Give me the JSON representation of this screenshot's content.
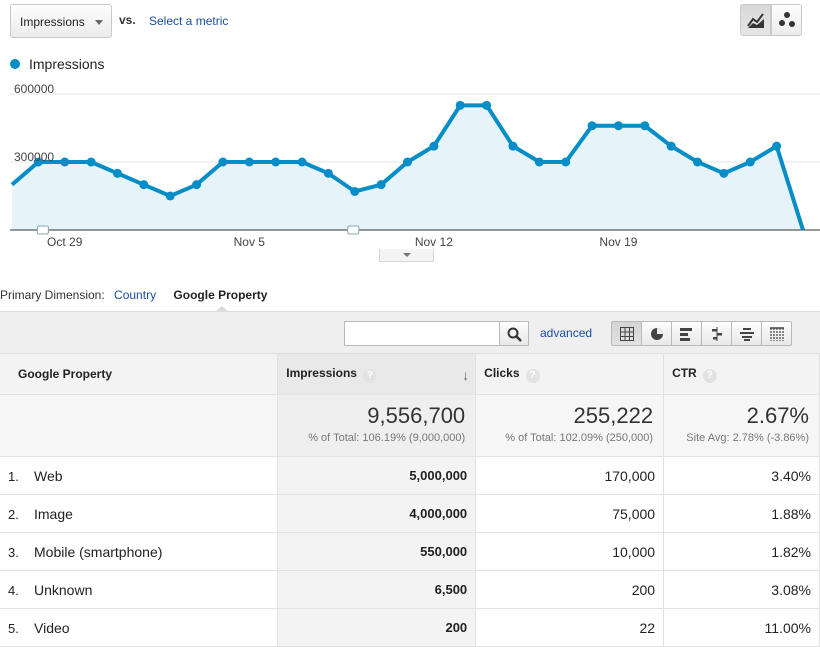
{
  "controls": {
    "metric": "Impressions",
    "vs": "vs.",
    "select_metric": "Select a metric"
  },
  "legend": {
    "series_name": "Impressions",
    "color": "#058dc7"
  },
  "chart_data": {
    "type": "area",
    "series": [
      {
        "name": "Impressions",
        "values": [
          200000,
          300000,
          300000,
          300000,
          250000,
          200000,
          150000,
          200000,
          300000,
          300000,
          300000,
          300000,
          250000,
          170000,
          200000,
          300000,
          370000,
          550000,
          550000,
          370000,
          300000,
          300000,
          460000,
          460000,
          460000,
          370000,
          300000,
          250000,
          300000,
          370000,
          0
        ]
      }
    ],
    "yticks": [
      "600000",
      "300000"
    ],
    "ylim": [
      0,
      600000
    ],
    "xlabels": [
      "Oct 29",
      "Nov 5",
      "Nov 12",
      "Nov 19"
    ],
    "grid": true,
    "line_color": "#058dc7",
    "fill_color": "#e6f4fa"
  },
  "primary_dimension": {
    "label": "Primary Dimension:",
    "link": "Country",
    "active": "Google Property"
  },
  "toolbar": {
    "search_value": "",
    "advanced": "advanced"
  },
  "table": {
    "headers": {
      "dimension": "Google Property",
      "impressions": "Impressions",
      "clicks": "Clicks",
      "ctr": "CTR",
      "help": "?"
    },
    "totals": {
      "impressions": "9,556,700",
      "impressions_sub": "% of Total: 106.19% (9,000,000)",
      "clicks": "255,222",
      "clicks_sub": "% of Total: 102.09% (250,000)",
      "ctr": "2.67%",
      "ctr_sub": "Site Avg: 2.78% (-3.86%)"
    },
    "rows": [
      {
        "rank": "1.",
        "name": "Web",
        "impressions": "5,000,000",
        "clicks": "170,000",
        "ctr": "3.40%"
      },
      {
        "rank": "2.",
        "name": "Image",
        "impressions": "4,000,000",
        "clicks": "75,000",
        "ctr": "1.88%"
      },
      {
        "rank": "3.",
        "name": "Mobile (smartphone)",
        "impressions": "550,000",
        "clicks": "10,000",
        "ctr": "1.82%"
      },
      {
        "rank": "4.",
        "name": "Unknown",
        "impressions": "6,500",
        "clicks": "200",
        "ctr": "3.08%"
      },
      {
        "rank": "5.",
        "name": "Video",
        "impressions": "200",
        "clicks": "22",
        "ctr": "11.00%"
      }
    ]
  }
}
